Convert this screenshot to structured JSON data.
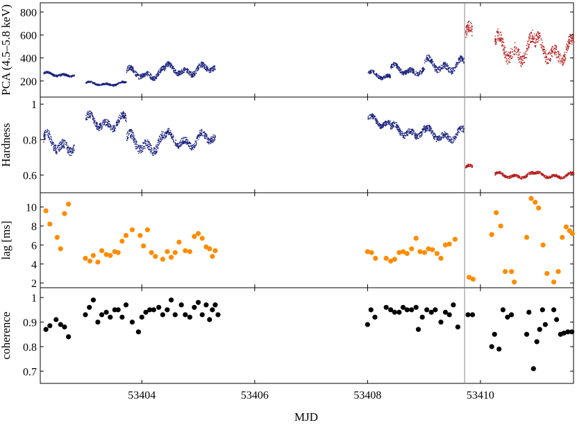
{
  "figure": {
    "xlabel": "MJD",
    "x_ticks": [
      "53404",
      "53406",
      "53408",
      "53410"
    ]
  },
  "panels": [
    {
      "ylabel": "PCA (4.5–5.8 keV)",
      "y_ticks": [
        "200",
        "400",
        "600",
        "800"
      ]
    },
    {
      "ylabel": "Hardness",
      "y_ticks": [
        "0.6",
        "0.8",
        "1"
      ]
    },
    {
      "ylabel": "lag [ms]",
      "y_ticks": [
        "2",
        "4",
        "6",
        "8",
        "10"
      ]
    },
    {
      "ylabel": "coherence",
      "y_ticks": [
        "0.7",
        "0.8",
        "0.9",
        "1"
      ]
    }
  ],
  "chart_data": [
    {
      "type": "scatter",
      "title": "",
      "xlabel": "MJD",
      "ylabel": "PCA (4.5–5.8 keV)",
      "xlim": [
        53402.2,
        53411.65
      ],
      "ylim": [
        60,
        880
      ],
      "grid": false,
      "transition_line_x": 53409.72,
      "colors": {
        "before": "#1a237e",
        "after": "#b71c1c"
      },
      "segments": [
        {
          "x0": 53402.25,
          "x1": 53402.8,
          "level": 260,
          "amp": 35,
          "color": "before"
        },
        {
          "x0": 53403.0,
          "x1": 53403.72,
          "level": 180,
          "amp": 30,
          "color": "before"
        },
        {
          "x0": 53403.72,
          "x1": 53404.4,
          "level": 270,
          "amp": 90,
          "color": "before"
        },
        {
          "x0": 53404.4,
          "x1": 53405.3,
          "level": 300,
          "amp": 90,
          "color": "before"
        },
        {
          "x0": 53408.0,
          "x1": 53408.4,
          "level": 250,
          "amp": 60,
          "color": "before"
        },
        {
          "x0": 53408.4,
          "x1": 53409.0,
          "level": 300,
          "amp": 80,
          "color": "before"
        },
        {
          "x0": 53409.0,
          "x1": 53409.7,
          "level": 340,
          "amp": 110,
          "color": "before"
        },
        {
          "x0": 53409.73,
          "x1": 53409.85,
          "level": 560,
          "amp": 200,
          "color": "after"
        },
        {
          "x0": 53410.25,
          "x1": 53410.95,
          "level": 480,
          "amp": 220,
          "color": "after"
        },
        {
          "x0": 53410.95,
          "x1": 53411.65,
          "level": 470,
          "amp": 200,
          "color": "after"
        }
      ]
    },
    {
      "type": "scatter",
      "title": "",
      "xlabel": "MJD",
      "ylabel": "Hardness",
      "xlim": [
        53402.2,
        53411.65
      ],
      "ylim": [
        0.5,
        1.04
      ],
      "grid": false,
      "transition_line_x": 53409.72,
      "colors": {
        "before": "#1a237e",
        "after": "#b71c1c"
      },
      "segments": [
        {
          "x0": 53402.25,
          "x1": 53402.8,
          "level": 0.78,
          "amp": 0.1,
          "color": "before"
        },
        {
          "x0": 53403.0,
          "x1": 53403.72,
          "level": 0.9,
          "amp": 0.08,
          "color": "before"
        },
        {
          "x0": 53403.72,
          "x1": 53404.4,
          "level": 0.78,
          "amp": 0.1,
          "color": "before"
        },
        {
          "x0": 53404.4,
          "x1": 53405.3,
          "level": 0.8,
          "amp": 0.08,
          "color": "before"
        },
        {
          "x0": 53408.0,
          "x1": 53408.4,
          "level": 0.9,
          "amp": 0.06,
          "color": "before"
        },
        {
          "x0": 53408.4,
          "x1": 53409.0,
          "level": 0.85,
          "amp": 0.07,
          "color": "before"
        },
        {
          "x0": 53409.0,
          "x1": 53409.7,
          "level": 0.83,
          "amp": 0.07,
          "color": "before"
        },
        {
          "x0": 53409.73,
          "x1": 53409.85,
          "level": 0.64,
          "amp": 0.03,
          "color": "after"
        },
        {
          "x0": 53410.25,
          "x1": 53410.95,
          "level": 0.6,
          "amp": 0.03,
          "color": "after"
        },
        {
          "x0": 53410.95,
          "x1": 53411.65,
          "level": 0.6,
          "amp": 0.03,
          "color": "after"
        }
      ]
    },
    {
      "type": "scatter",
      "title": "",
      "xlabel": "MJD",
      "ylabel": "lag [ms]",
      "xlim": [
        53402.2,
        53411.65
      ],
      "ylim": [
        1.5,
        11.5
      ],
      "grid": false,
      "color": "#ff8c00",
      "points": [
        [
          53402.3,
          9.6
        ],
        [
          53402.37,
          8.2
        ],
        [
          53402.5,
          6.8
        ],
        [
          53402.56,
          5.6
        ],
        [
          53402.63,
          9.3
        ],
        [
          53402.7,
          10.3
        ],
        [
          53403.0,
          4.6
        ],
        [
          53403.08,
          4.3
        ],
        [
          53403.14,
          4.9
        ],
        [
          53403.22,
          4.2
        ],
        [
          53403.29,
          5.4
        ],
        [
          53403.37,
          5.0
        ],
        [
          53403.44,
          4.9
        ],
        [
          53403.52,
          5.3
        ],
        [
          53403.58,
          5.2
        ],
        [
          53403.65,
          6.4
        ],
        [
          53403.72,
          7.0
        ],
        [
          53403.83,
          7.6
        ],
        [
          53403.97,
          7.0
        ],
        [
          53404.03,
          5.9
        ],
        [
          53404.1,
          7.6
        ],
        [
          53404.17,
          5.2
        ],
        [
          53404.24,
          4.8
        ],
        [
          53404.37,
          4.5
        ],
        [
          53404.45,
          5.3
        ],
        [
          53404.52,
          4.7
        ],
        [
          53404.59,
          5.2
        ],
        [
          53404.66,
          6.3
        ],
        [
          53404.77,
          5.4
        ],
        [
          53404.85,
          5.3
        ],
        [
          53404.93,
          6.9
        ],
        [
          53405.0,
          7.2
        ],
        [
          53405.07,
          6.7
        ],
        [
          53405.14,
          5.8
        ],
        [
          53405.2,
          5.6
        ],
        [
          53405.25,
          4.8
        ],
        [
          53405.3,
          5.4
        ],
        [
          53408.0,
          5.3
        ],
        [
          53408.07,
          5.2
        ],
        [
          53408.14,
          4.6
        ],
        [
          53408.33,
          4.6
        ],
        [
          53408.41,
          4.3
        ],
        [
          53408.48,
          4.5
        ],
        [
          53408.56,
          5.2
        ],
        [
          53408.63,
          5.3
        ],
        [
          53408.7,
          5.1
        ],
        [
          53408.78,
          5.6
        ],
        [
          53408.86,
          6.7
        ],
        [
          53408.93,
          5.3
        ],
        [
          53409.01,
          5.2
        ],
        [
          53409.08,
          5.6
        ],
        [
          53409.15,
          5.5
        ],
        [
          53409.23,
          5.1
        ],
        [
          53409.3,
          4.6
        ],
        [
          53409.38,
          6.0
        ],
        [
          53409.45,
          6.1
        ],
        [
          53409.55,
          6.6
        ],
        [
          53409.8,
          2.6
        ],
        [
          53409.87,
          2.4
        ],
        [
          53410.2,
          7.1
        ],
        [
          53410.28,
          9.4
        ],
        [
          53410.36,
          8.0
        ],
        [
          53410.44,
          3.2
        ],
        [
          53410.55,
          3.2
        ],
        [
          53410.6,
          2.1
        ],
        [
          53410.82,
          6.8
        ],
        [
          53410.9,
          10.9
        ],
        [
          53410.97,
          10.5
        ],
        [
          53411.03,
          9.9
        ],
        [
          53411.11,
          6.0
        ],
        [
          53411.18,
          3.0
        ],
        [
          53411.3,
          2.1
        ],
        [
          53411.38,
          3.2
        ],
        [
          53411.45,
          6.8
        ],
        [
          53411.52,
          7.9
        ],
        [
          53411.58,
          7.5
        ],
        [
          53411.63,
          7.2
        ]
      ]
    },
    {
      "type": "scatter",
      "title": "",
      "xlabel": "MJD",
      "ylabel": "coherence",
      "xlim": [
        53402.2,
        53411.65
      ],
      "ylim": [
        0.65,
        1.04
      ],
      "grid": false,
      "color": "#000000",
      "points": [
        [
          53402.3,
          0.87
        ],
        [
          53402.37,
          0.885
        ],
        [
          53402.48,
          0.91
        ],
        [
          53402.56,
          0.89
        ],
        [
          53402.63,
          0.88
        ],
        [
          53402.7,
          0.84
        ],
        [
          53403.0,
          0.93
        ],
        [
          53403.07,
          0.96
        ],
        [
          53403.14,
          0.99
        ],
        [
          53403.22,
          0.9
        ],
        [
          53403.29,
          0.93
        ],
        [
          53403.37,
          0.94
        ],
        [
          53403.44,
          0.92
        ],
        [
          53403.52,
          0.95
        ],
        [
          53403.58,
          0.95
        ],
        [
          53403.65,
          0.92
        ],
        [
          53403.72,
          0.97
        ],
        [
          53403.83,
          0.9
        ],
        [
          53403.94,
          0.86
        ],
        [
          53404.0,
          0.92
        ],
        [
          53404.07,
          0.94
        ],
        [
          53404.14,
          0.95
        ],
        [
          53404.21,
          0.95
        ],
        [
          53404.3,
          0.96
        ],
        [
          53404.37,
          0.93
        ],
        [
          53404.45,
          0.95
        ],
        [
          53404.52,
          0.99
        ],
        [
          53404.59,
          0.93
        ],
        [
          53404.7,
          0.97
        ],
        [
          53404.77,
          0.93
        ],
        [
          53404.85,
          0.92
        ],
        [
          53404.93,
          0.96
        ],
        [
          53405.0,
          0.98
        ],
        [
          53405.07,
          0.93
        ],
        [
          53405.14,
          0.97
        ],
        [
          53405.2,
          0.91
        ],
        [
          53405.25,
          0.95
        ],
        [
          53405.3,
          0.97
        ],
        [
          53405.35,
          0.93
        ],
        [
          53408.0,
          0.89
        ],
        [
          53408.06,
          0.95
        ],
        [
          53408.13,
          0.92
        ],
        [
          53408.33,
          0.96
        ],
        [
          53408.41,
          0.95
        ],
        [
          53408.48,
          0.94
        ],
        [
          53408.56,
          0.94
        ],
        [
          53408.63,
          0.96
        ],
        [
          53408.7,
          0.95
        ],
        [
          53408.78,
          0.95
        ],
        [
          53408.86,
          0.96
        ],
        [
          53408.9,
          0.87
        ],
        [
          53408.97,
          0.92
        ],
        [
          53409.05,
          0.95
        ],
        [
          53409.13,
          0.94
        ],
        [
          53409.2,
          0.95
        ],
        [
          53409.3,
          0.9
        ],
        [
          53409.38,
          0.94
        ],
        [
          53409.45,
          0.93
        ],
        [
          53409.52,
          0.97
        ],
        [
          53409.6,
          0.88
        ],
        [
          53409.78,
          0.93
        ],
        [
          53409.86,
          0.93
        ],
        [
          53410.2,
          0.8
        ],
        [
          53410.25,
          0.85
        ],
        [
          53410.33,
          0.79
        ],
        [
          53410.4,
          0.95
        ],
        [
          53410.48,
          0.92
        ],
        [
          53410.55,
          0.93
        ],
        [
          53410.82,
          0.85
        ],
        [
          53410.86,
          0.94
        ],
        [
          53410.94,
          0.71
        ],
        [
          53411.0,
          0.82
        ],
        [
          53411.05,
          0.87
        ],
        [
          53411.1,
          0.95
        ],
        [
          53411.15,
          0.89
        ],
        [
          53411.3,
          0.95
        ],
        [
          53411.35,
          0.91
        ],
        [
          53411.42,
          0.85
        ],
        [
          53411.48,
          0.855
        ],
        [
          53411.55,
          0.86
        ],
        [
          53411.62,
          0.86
        ]
      ]
    }
  ]
}
